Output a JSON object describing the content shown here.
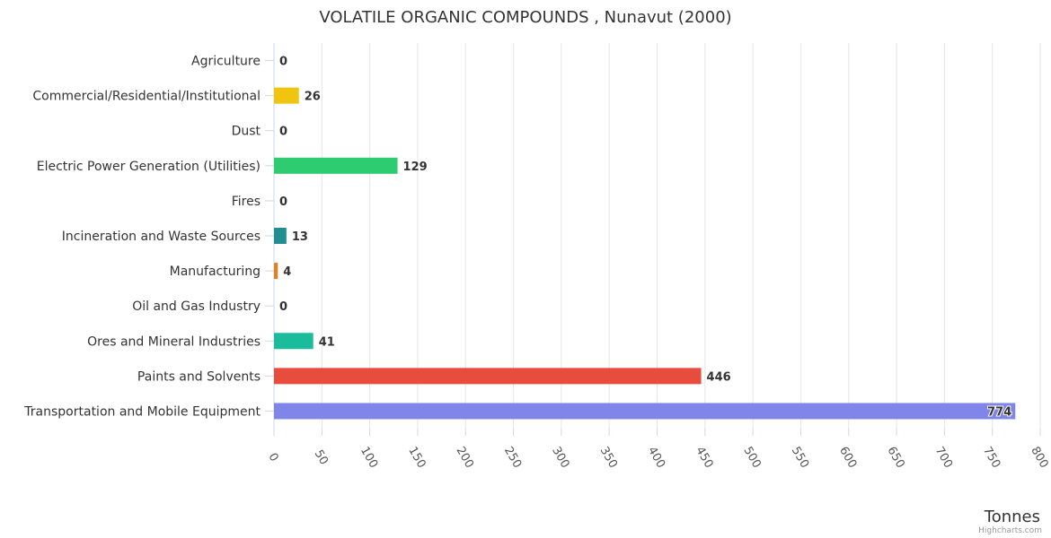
{
  "chart_data": {
    "type": "bar",
    "orientation": "horizontal",
    "title": "VOLATILE ORGANIC COMPOUNDS , Nunavut (2000)",
    "xlabel": "Tonnes",
    "ylabel": "",
    "xlim": [
      0,
      800
    ],
    "x_tick_step": 50,
    "grid": true,
    "categories": [
      "Agriculture",
      "Commercial/Residential/Institutional",
      "Dust",
      "Electric Power Generation (Utilities)",
      "Fires",
      "Incineration and Waste Sources",
      "Manufacturing",
      "Oil and Gas Industry",
      "Ores and Mineral Industries",
      "Paints and Solvents",
      "Transportation and Mobile Equipment"
    ],
    "values": [
      0,
      26,
      0,
      129,
      0,
      13,
      4,
      0,
      41,
      446,
      774
    ],
    "colors": [
      "#7cb5ec",
      "#f1c40f",
      "#2c3e50",
      "#2ecc71",
      "#e67e22",
      "#1f8f8f",
      "#e67e22",
      "#34495e",
      "#1abc9c",
      "#e74c3c",
      "#8085e9"
    ]
  },
  "credits": "Highcharts.com"
}
